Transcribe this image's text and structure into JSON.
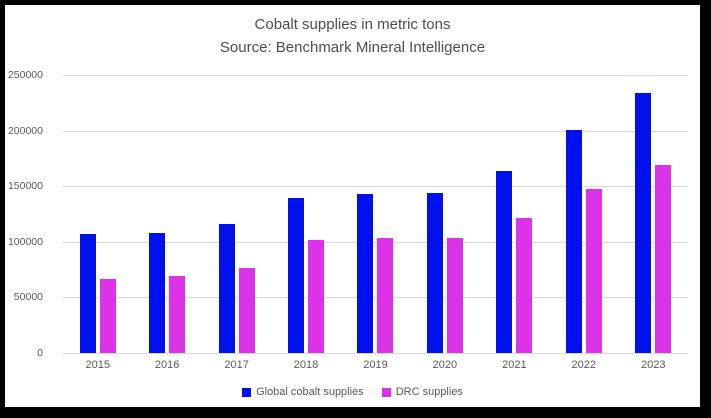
{
  "chart_data": {
    "type": "bar",
    "title": "Cobalt supplies in metric tons",
    "subtitle": "Source: Benchmark Mineral Intelligence",
    "categories": [
      "2015",
      "2016",
      "2017",
      "2018",
      "2019",
      "2020",
      "2021",
      "2022",
      "2023"
    ],
    "series": [
      {
        "name": "Global cobalt supplies",
        "color": "#0011ee",
        "values": [
          107000,
          108000,
          116000,
          139500,
          143000,
          144000,
          163500,
          200500,
          234000
        ]
      },
      {
        "name": "DRC supplies",
        "color": "#dd33e8",
        "values": [
          67000,
          69000,
          76500,
          101500,
          103500,
          103000,
          121500,
          147500,
          169000
        ]
      }
    ],
    "xlabel": "",
    "ylabel": "",
    "ylim": [
      0,
      250000
    ],
    "yticks": [
      0,
      50000,
      100000,
      150000,
      200000,
      250000
    ],
    "grid": true,
    "legend_position": "bottom"
  },
  "colors": {
    "frame_border": "#000000",
    "background": "#ffffff",
    "gridline": "#d9d9d9",
    "title_text": "#4d4d4d",
    "tick_text": "#595959"
  }
}
